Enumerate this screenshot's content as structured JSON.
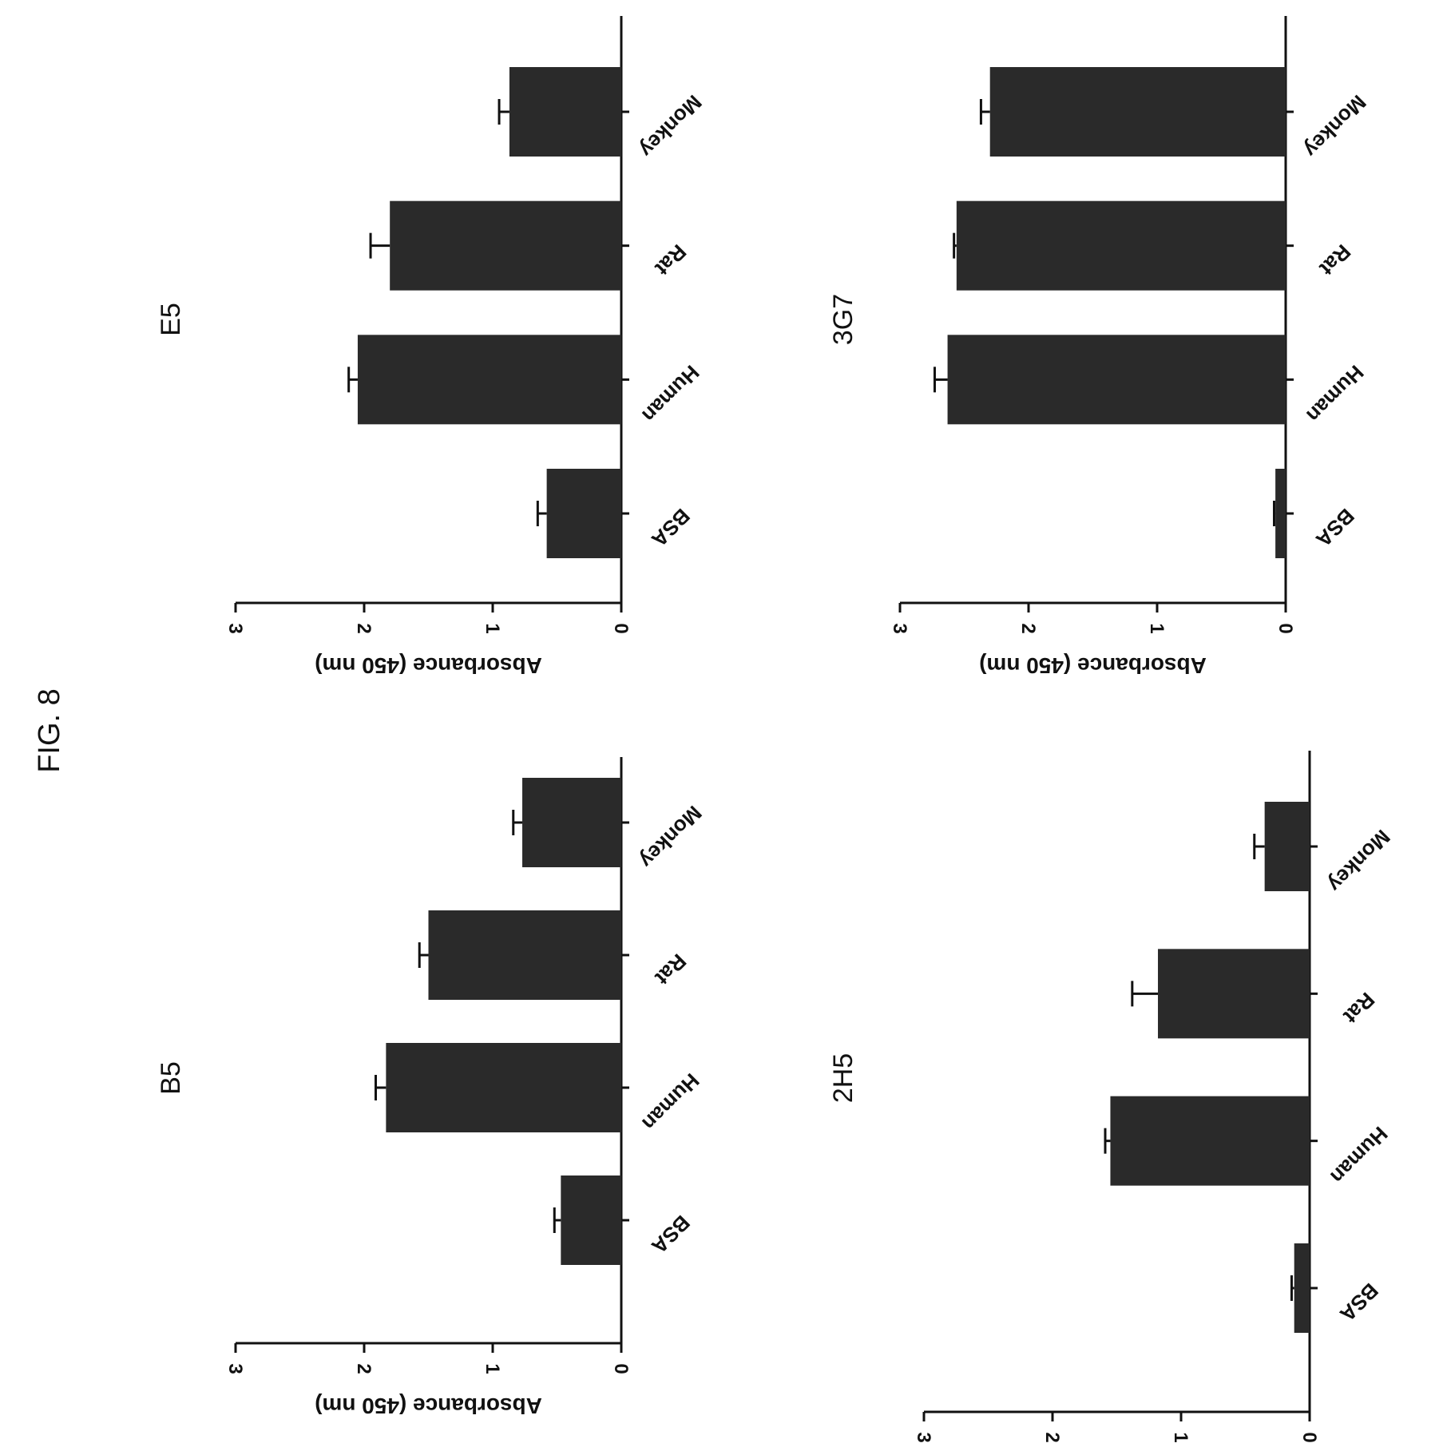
{
  "figure_title": "FIG. 8",
  "chart_data": [
    {
      "type": "bar",
      "title": "B5",
      "categories": [
        "BSA",
        "Human",
        "Rat",
        "Monkey"
      ],
      "values": [
        0.47,
        1.83,
        1.5,
        0.77
      ],
      "errors": [
        0.05,
        0.08,
        0.07,
        0.07
      ],
      "ylabel": "Absorbance (450 nm)",
      "ylim": [
        0,
        3
      ],
      "yticks": [
        "0",
        "1",
        "2",
        "3"
      ],
      "color": "#2a2a2a"
    },
    {
      "type": "bar",
      "title": "E5",
      "categories": [
        "BSA",
        "Human",
        "Rat",
        "Monkey"
      ],
      "values": [
        0.58,
        2.05,
        1.8,
        0.87
      ],
      "errors": [
        0.07,
        0.07,
        0.15,
        0.08
      ],
      "ylabel": "Absorbance (450 nm)",
      "ylim": [
        0,
        3
      ],
      "yticks": [
        "0",
        "1",
        "2",
        "3"
      ],
      "color": "#2a2a2a"
    },
    {
      "type": "bar",
      "title": "2H5",
      "categories": [
        "BSA",
        "Human",
        "Rat",
        "Monkey"
      ],
      "values": [
        0.12,
        1.55,
        1.18,
        0.35
      ],
      "errors": [
        0.02,
        0.04,
        0.2,
        0.08
      ],
      "ylabel": "Absorbance (450 nm)",
      "ylim": [
        0,
        3
      ],
      "yticks": [
        "0",
        "1",
        "2",
        "3"
      ],
      "color": "#2a2a2a"
    },
    {
      "type": "bar",
      "title": "3G7",
      "categories": [
        "BSA",
        "Human",
        "Rat",
        "Monkey"
      ],
      "values": [
        0.08,
        2.63,
        2.56,
        2.3
      ],
      "errors": [
        0.01,
        0.1,
        0.02,
        0.07
      ],
      "ylabel": "Absorbance (450 nm)",
      "ylim": [
        0,
        3
      ],
      "yticks": [
        "0",
        "1",
        "2",
        "3"
      ],
      "color": "#2a2a2a"
    }
  ]
}
